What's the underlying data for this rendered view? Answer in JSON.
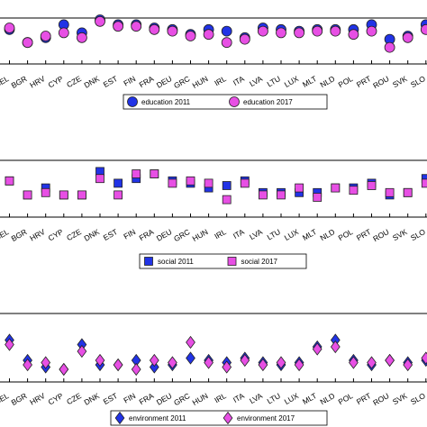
{
  "colors": {
    "blue": "#2133e6",
    "magenta": "#e74fe4",
    "edge": "#222222",
    "axis": "#000000"
  },
  "chart_data": [
    {
      "type": "scatter",
      "marker": "circle",
      "categories": [
        "BEL",
        "BGR",
        "HRV",
        "CYP",
        "CZE",
        "DNK",
        "EST",
        "FIN",
        "FRA",
        "DEU",
        "GRC",
        "HUN",
        "IRL",
        "ITA",
        "LVA",
        "LTU",
        "LUX",
        "MLT",
        "NLD",
        "POL",
        "PRT",
        "ROU",
        "SVK",
        "SLO"
      ],
      "series": [
        {
          "name": "education 2011",
          "color": "#2133e6",
          "values": [
            0.7,
            0.3,
            0.45,
            0.85,
            0.6,
            1.0,
            0.85,
            0.85,
            0.75,
            0.7,
            0.55,
            0.7,
            0.65,
            0.45,
            0.75,
            0.7,
            0.65,
            0.7,
            0.7,
            0.7,
            0.85,
            0.4,
            0.5,
            0.85
          ]
        },
        {
          "name": "education 2017",
          "color": "#e74fe4",
          "values": [
            0.75,
            0.3,
            0.5,
            0.6,
            0.45,
            0.95,
            0.8,
            0.8,
            0.7,
            0.65,
            0.5,
            0.55,
            0.3,
            0.4,
            0.65,
            0.6,
            0.6,
            0.65,
            0.65,
            0.55,
            0.65,
            0.15,
            0.45,
            0.7
          ]
        }
      ],
      "xlim": [
        -0.5,
        23.5
      ],
      "ylim": [
        0,
        1
      ],
      "legend_position": "bottom-center"
    },
    {
      "type": "scatter",
      "marker": "square",
      "categories": [
        "BEL",
        "BGR",
        "HRV",
        "CYP",
        "CZE",
        "DNK",
        "EST",
        "FIN",
        "FRA",
        "DEU",
        "GRC",
        "HUN",
        "IRL",
        "ITA",
        "LVA",
        "LTU",
        "LUX",
        "MLT",
        "NLD",
        "POL",
        "PRT",
        "ROU",
        "SVK",
        "SLO"
      ],
      "series": [
        {
          "name": "social 2011",
          "color": "#2133e6",
          "values": [
            0.6,
            0.3,
            0.45,
            0.3,
            0.3,
            0.8,
            0.55,
            0.65,
            0.75,
            0.6,
            0.55,
            0.45,
            0.5,
            0.6,
            0.35,
            0.35,
            0.35,
            0.35,
            0.45,
            0.45,
            0.55,
            0.3,
            0.35,
            0.65
          ]
        },
        {
          "name": "social 2017",
          "color": "#e74fe4",
          "values": [
            0.6,
            0.3,
            0.35,
            0.3,
            0.3,
            0.65,
            0.3,
            0.75,
            0.75,
            0.55,
            0.6,
            0.55,
            0.2,
            0.55,
            0.3,
            0.3,
            0.45,
            0.25,
            0.45,
            0.4,
            0.5,
            0.35,
            0.35,
            0.55
          ]
        }
      ],
      "xlim": [
        -0.5,
        23.5
      ],
      "ylim": [
        0,
        1
      ],
      "legend_position": "bottom-center"
    },
    {
      "type": "scatter",
      "marker": "diamond",
      "categories": [
        "BEL",
        "BGR",
        "HRV",
        "CYP",
        "CZE",
        "DNK",
        "EST",
        "FIN",
        "FRA",
        "DEU",
        "GRC",
        "HUN",
        "IRL",
        "ITA",
        "LVA",
        "LTU",
        "LUX",
        "MLT",
        "NLD",
        "POL",
        "PRT",
        "ROU",
        "SVK",
        "SLO"
      ],
      "series": [
        {
          "name": "environment 2011",
          "color": "#2133e6",
          "values": [
            0.85,
            0.4,
            0.25,
            0.2,
            0.75,
            0.3,
            0.3,
            0.4,
            0.25,
            0.3,
            0.45,
            0.4,
            0.35,
            0.45,
            0.35,
            0.3,
            0.35,
            0.7,
            0.85,
            0.4,
            0.3,
            0.4,
            0.35,
            0.4
          ]
        },
        {
          "name": "environment 2017",
          "color": "#e74fe4",
          "values": [
            0.75,
            0.3,
            0.35,
            0.2,
            0.6,
            0.4,
            0.3,
            0.2,
            0.4,
            0.35,
            0.8,
            0.35,
            0.25,
            0.4,
            0.3,
            0.35,
            0.3,
            0.65,
            0.7,
            0.35,
            0.35,
            0.4,
            0.3,
            0.45
          ]
        }
      ],
      "xlim": [
        -0.5,
        23.5
      ],
      "ylim": [
        0,
        1
      ],
      "legend_position": "bottom-center"
    }
  ]
}
